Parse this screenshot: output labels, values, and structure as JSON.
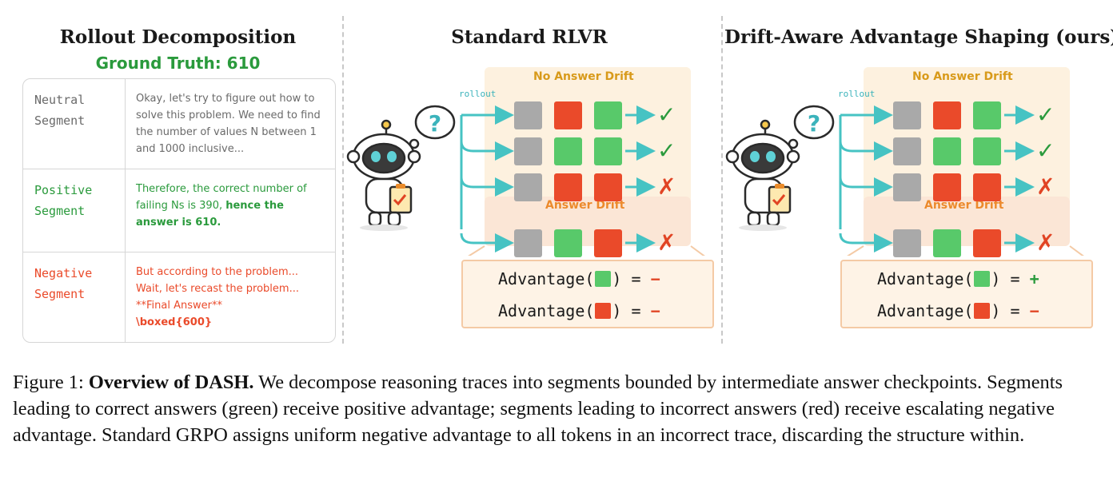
{
  "left": {
    "title": "Rollout Decomposition",
    "ground_truth": "Ground Truth: 610",
    "segments": [
      {
        "name": "Neutral\nSegment",
        "text": "Okay, let's try to figure out how to solve this problem. We need to find the number of values N between 1 and 1000 inclusive..."
      },
      {
        "name": "Positive\nSegment",
        "text_plain": "Therefore, the correct number of failing Ns is 390, ",
        "text_bold": "hence the answer is 610."
      },
      {
        "name": "Negative\nSegment",
        "lines": [
          "But according to the problem...",
          "Wait, let's recast the problem...",
          "**Final Answer**",
          "\\boxed{600}"
        ]
      }
    ]
  },
  "middle": {
    "title": "Standard RLVR",
    "no_drift_label": "No Answer Drift",
    "drift_label": "Answer Drift",
    "rollout_label": "rollout",
    "adv_prefix": "Advantage(",
    "adv_suffix": ") = ",
    "adv_green_sign": "−",
    "adv_red_sign": "−"
  },
  "right": {
    "title": "Drift-Aware Advantage Shaping (ours)",
    "no_drift_label": "No Answer Drift",
    "drift_label": "Answer Drift",
    "rollout_label": "rollout",
    "adv_prefix": "Advantage(",
    "adv_suffix": ") = ",
    "adv_green_sign": "+",
    "adv_red_sign": "−"
  },
  "rows": [
    {
      "cells": [
        "gray",
        "red",
        "green"
      ],
      "result": "✓"
    },
    {
      "cells": [
        "gray",
        "green",
        "green"
      ],
      "result": "✓"
    },
    {
      "cells": [
        "gray",
        "red",
        "red"
      ],
      "result": "✗"
    },
    {
      "cells": [
        "gray",
        "green",
        "red"
      ],
      "result": "✗"
    }
  ],
  "colors": {
    "gray": "#a9a9a9",
    "green": "#58c96a",
    "red": "#ea4a2a",
    "teal": "#46c3c3",
    "gold": "#d89a1a",
    "orange": "#ec8a2c"
  },
  "caption": {
    "label": "Figure 1: ",
    "bold": "Overview of DASH.",
    "text": " We decompose reasoning traces into segments bounded by intermediate answer checkpoints. Segments leading to correct answers (green) receive positive advantage; segments leading to incorrect answers (red) receive escalating negative advantage. Standard GRPO assigns uniform negative advantage to all tokens in an incorrect trace, discarding the structure within."
  }
}
